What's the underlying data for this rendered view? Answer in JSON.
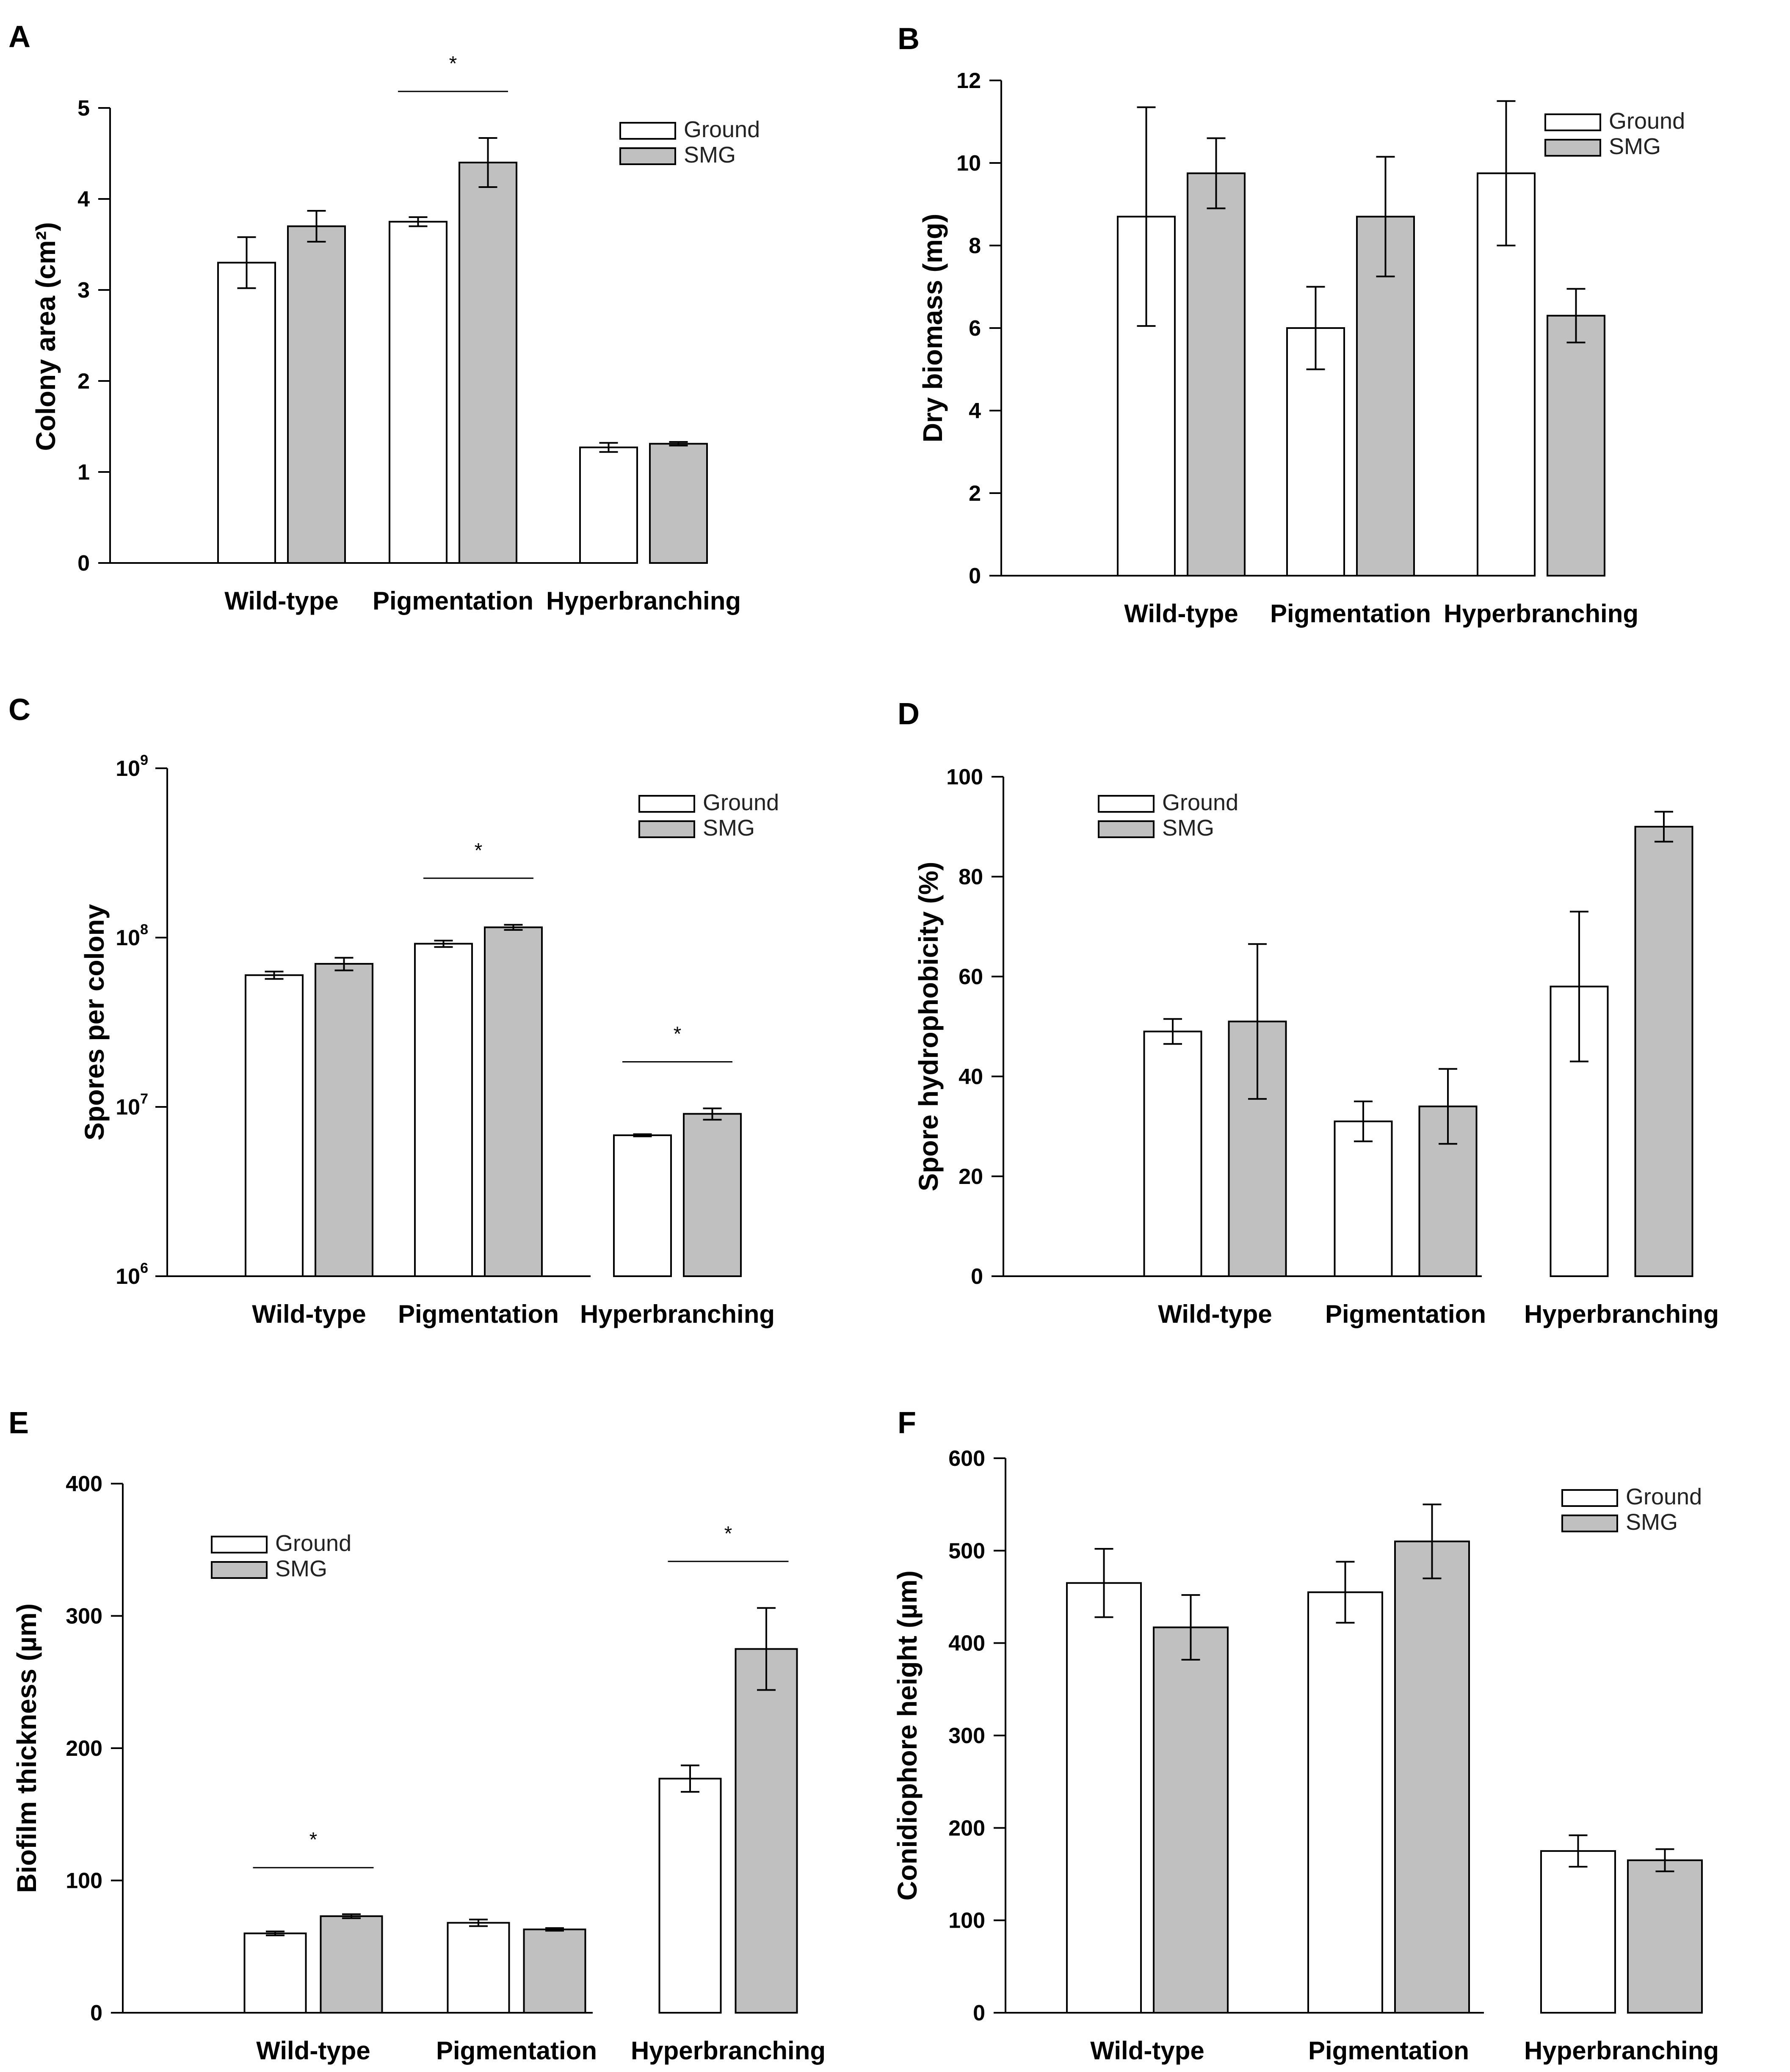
{
  "figure": {
    "legend": {
      "ground": "Ground",
      "smg": "SMG"
    },
    "colors": {
      "ground": "#ffffff",
      "smg": "#c0c0c0",
      "stroke": "#000000"
    }
  },
  "chart_data": [
    {
      "panel": "A",
      "type": "bar",
      "title": "",
      "ylabel": "Colony area (cm²)",
      "categories": [
        "Wild-type",
        "Pigmentation",
        "Hyperbranching"
      ],
      "series": [
        {
          "name": "Ground",
          "values": [
            3.3,
            3.75,
            1.27
          ],
          "errors": [
            0.28,
            0.05,
            0.05
          ]
        },
        {
          "name": "SMG",
          "values": [
            3.7,
            4.4,
            1.31
          ],
          "errors": [
            0.17,
            0.27,
            0.02
          ]
        }
      ],
      "ylim": [
        0,
        5
      ],
      "yticks": [
        "0",
        "1",
        "2",
        "3",
        "4",
        "5"
      ],
      "significance": [
        {
          "category": "Pigmentation",
          "label": "*"
        }
      ],
      "legend_position": "top-right"
    },
    {
      "panel": "B",
      "type": "bar",
      "title": "",
      "ylabel": "Dry biomass (mg)",
      "categories": [
        "Wild-type",
        "Pigmentation",
        "Hyperbranching"
      ],
      "series": [
        {
          "name": "Ground",
          "values": [
            8.7,
            6.0,
            9.75
          ],
          "errors": [
            2.65,
            1.0,
            1.75
          ]
        },
        {
          "name": "SMG",
          "values": [
            9.75,
            8.7,
            6.3
          ],
          "errors": [
            0.85,
            1.45,
            0.65
          ]
        }
      ],
      "ylim": [
        0,
        12
      ],
      "yticks": [
        "0",
        "2",
        "4",
        "6",
        "8",
        "10",
        "12"
      ],
      "significance": [],
      "legend_position": "top-right"
    },
    {
      "panel": "C",
      "type": "bar",
      "title": "",
      "ylabel": "Spores per colony",
      "yscale": "log",
      "categories": [
        "Wild-type",
        "Pigmentation",
        "Hyperbranching"
      ],
      "series": [
        {
          "name": "Ground",
          "values": [
            60000000,
            92000000,
            6800000
          ],
          "errors": [
            3000000,
            4000000,
            100000
          ]
        },
        {
          "name": "SMG",
          "values": [
            70000000,
            115000000,
            9100000
          ],
          "errors": [
            6000000,
            4000000,
            700000
          ]
        }
      ],
      "ylim": [
        1000000,
        1000000000
      ],
      "ytick_labels": [
        {
          "base": "10",
          "exp": "6"
        },
        {
          "base": "10",
          "exp": "7"
        },
        {
          "base": "10",
          "exp": "8"
        },
        {
          "base": "10",
          "exp": "9"
        }
      ],
      "significance": [
        {
          "category": "Pigmentation",
          "label": "*"
        },
        {
          "category": "Hyperbranching",
          "label": "*"
        }
      ],
      "legend_position": "top-right"
    },
    {
      "panel": "D",
      "type": "bar",
      "title": "",
      "ylabel": "Spore hydrophobicity (%)",
      "categories": [
        "Wild-type",
        "Pigmentation",
        "Hyperbranching"
      ],
      "series": [
        {
          "name": "Ground",
          "values": [
            49,
            31,
            58
          ],
          "errors": [
            2.5,
            4,
            15
          ]
        },
        {
          "name": "SMG",
          "values": [
            51,
            34,
            90
          ],
          "errors": [
            15.5,
            7.5,
            3
          ]
        }
      ],
      "ylim": [
        0,
        100
      ],
      "yticks": [
        "0",
        "20",
        "40",
        "60",
        "80",
        "100"
      ],
      "significance": [],
      "legend_position": "top-left"
    },
    {
      "panel": "E",
      "type": "bar",
      "title": "",
      "ylabel": "Biofilm thickness (µm)",
      "categories": [
        "Wild-type",
        "Pigmentation",
        "Hyperbranching"
      ],
      "series": [
        {
          "name": "Ground",
          "values": [
            60,
            68,
            177
          ],
          "errors": [
            1.5,
            2.5,
            10
          ]
        },
        {
          "name": "SMG",
          "values": [
            73,
            63,
            275
          ],
          "errors": [
            1.5,
            1,
            31
          ]
        }
      ],
      "ylim": [
        0,
        400
      ],
      "yticks": [
        "0",
        "100",
        "200",
        "300",
        "400"
      ],
      "significance": [
        {
          "category": "Wild-type",
          "label": "*"
        },
        {
          "category": "Hyperbranching",
          "label": "*"
        }
      ],
      "legend_position": "top-left"
    },
    {
      "panel": "F",
      "type": "bar",
      "title": "",
      "ylabel": "Conidiophore height (µm)",
      "categories": [
        "Wild-type",
        "Pigmentation",
        "Hyperbranching"
      ],
      "series": [
        {
          "name": "Ground",
          "values": [
            465,
            455,
            175
          ],
          "errors": [
            37,
            33,
            17
          ]
        },
        {
          "name": "SMG",
          "values": [
            417,
            510,
            165
          ],
          "errors": [
            35,
            40,
            12
          ]
        }
      ],
      "ylim": [
        0,
        600
      ],
      "yticks": [
        "0",
        "100",
        "200",
        "300",
        "400",
        "500",
        "600"
      ],
      "significance": [],
      "legend_position": "top-right"
    }
  ]
}
